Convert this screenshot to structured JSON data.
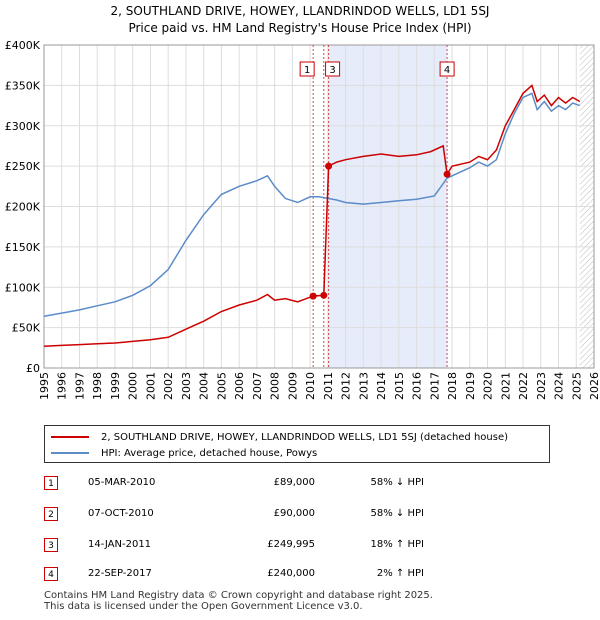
{
  "title_line1": "2, SOUTHLAND DRIVE, HOWEY, LLANDRINDOD WELLS, LD1 5SJ",
  "title_line2": "Price paid vs. HM Land Registry's House Price Index (HPI)",
  "legend": {
    "red_label": "2, SOUTHLAND DRIVE, HOWEY, LLANDRINDOD WELLS, LD1 5SJ (detached house)",
    "blue_label": "HPI: Average price, detached house, Powys"
  },
  "colors": {
    "red": "#cc0000",
    "blue": "#5b8cc8",
    "shade": "#e6ecfa",
    "grid": "#dddddd"
  },
  "transactions": [
    {
      "num": "1",
      "date": "05-MAR-2010",
      "price": "£89,000",
      "hpi": "58% ↓ HPI"
    },
    {
      "num": "2",
      "date": "07-OCT-2010",
      "price": "£90,000",
      "hpi": "58% ↓ HPI"
    },
    {
      "num": "3",
      "date": "14-JAN-2011",
      "price": "£249,995",
      "hpi": "18% ↑ HPI"
    },
    {
      "num": "4",
      "date": "22-SEP-2017",
      "price": "£240,000",
      "hpi": "2% ↑ HPI"
    }
  ],
  "footer_line1": "Contains HM Land Registry data © Crown copyright and database right 2025.",
  "footer_line2": "This data is licensed under the Open Government Licence v3.0.",
  "chart_data": {
    "type": "line",
    "xlabel": "",
    "ylabel": "",
    "xlim": [
      1995,
      2026
    ],
    "ylim": [
      0,
      400000
    ],
    "x_ticks": [
      "1995",
      "1996",
      "1997",
      "1998",
      "1999",
      "2000",
      "2001",
      "2002",
      "2003",
      "2004",
      "2005",
      "2006",
      "2007",
      "2008",
      "2009",
      "2010",
      "2011",
      "2012",
      "2013",
      "2014",
      "2015",
      "2016",
      "2017",
      "2018",
      "2019",
      "2020",
      "2021",
      "2022",
      "2023",
      "2024",
      "2025",
      "2026"
    ],
    "y_ticks": [
      {
        "value": 0,
        "label": "£0"
      },
      {
        "value": 50000,
        "label": "£50K"
      },
      {
        "value": 100000,
        "label": "£100K"
      },
      {
        "value": 150000,
        "label": "£150K"
      },
      {
        "value": 200000,
        "label": "£200K"
      },
      {
        "value": 250000,
        "label": "£250K"
      },
      {
        "value": 300000,
        "label": "£300K"
      },
      {
        "value": 350000,
        "label": "£350K"
      },
      {
        "value": 400000,
        "label": "£400K"
      }
    ],
    "shaded_range": [
      2011.04,
      2017.72
    ],
    "hatched_from": 2025.2,
    "sale_markers": [
      {
        "label": "1",
        "x": 2010.17,
        "y": 89000
      },
      {
        "label": "2",
        "x": 2010.77,
        "y": 90000
      },
      {
        "label": "3",
        "x": 2011.04,
        "y": 249995
      },
      {
        "label": "4",
        "x": 2017.72,
        "y": 240000
      }
    ],
    "series": [
      {
        "name": "2, SOUTHLAND DRIVE, HOWEY, LLANDRINDOD WELLS, LD1 5SJ (detached house)",
        "color": "#cc0000",
        "x": [
          1995.0,
          1996.0,
          1997.0,
          1998.0,
          1999.0,
          2000.0,
          2001.0,
          2002.0,
          2003.0,
          2004.0,
          2005.0,
          2006.0,
          2007.0,
          2007.6,
          2008.0,
          2008.6,
          2009.3,
          2010.17,
          2010.77,
          2011.04,
          2011.5,
          2012.0,
          2013.0,
          2014.0,
          2015.0,
          2016.0,
          2016.8,
          2017.5,
          2017.72,
          2018.0,
          2019.0,
          2019.5,
          2020.0,
          2020.5,
          2021.0,
          2021.5,
          2022.0,
          2022.5,
          2022.8,
          2023.2,
          2023.6,
          2024.0,
          2024.4,
          2024.8,
          2025.2
        ],
        "y": [
          27000,
          28000,
          29000,
          30000,
          31000,
          33000,
          35000,
          38000,
          48000,
          58000,
          70000,
          78000,
          84000,
          91000,
          84000,
          86000,
          82000,
          89000,
          90000,
          249995,
          255000,
          258000,
          262000,
          265000,
          262000,
          264000,
          268000,
          275000,
          240000,
          250000,
          255000,
          262000,
          258000,
          270000,
          300000,
          320000,
          340000,
          350000,
          330000,
          338000,
          325000,
          335000,
          328000,
          335000,
          330000
        ]
      },
      {
        "name": "HPI: Average price, detached house, Powys",
        "color": "#5b8cc8",
        "x": [
          1995.0,
          1996.0,
          1997.0,
          1998.0,
          1999.0,
          2000.0,
          2001.0,
          2002.0,
          2003.0,
          2004.0,
          2005.0,
          2006.0,
          2007.0,
          2007.6,
          2008.0,
          2008.6,
          2009.3,
          2010.0,
          2010.5,
          2011.0,
          2011.5,
          2012.0,
          2013.0,
          2014.0,
          2015.0,
          2016.0,
          2017.0,
          2017.72,
          2018.0,
          2019.0,
          2019.5,
          2020.0,
          2020.5,
          2021.0,
          2021.5,
          2022.0,
          2022.5,
          2022.8,
          2023.2,
          2023.6,
          2024.0,
          2024.4,
          2024.8,
          2025.2
        ],
        "y": [
          64000,
          68000,
          72000,
          77000,
          82000,
          90000,
          102000,
          122000,
          158000,
          190000,
          215000,
          225000,
          232000,
          238000,
          225000,
          210000,
          205000,
          212000,
          212000,
          210000,
          208000,
          205000,
          203000,
          205000,
          207000,
          209000,
          213000,
          235000,
          238000,
          248000,
          255000,
          250000,
          258000,
          290000,
          315000,
          335000,
          340000,
          320000,
          330000,
          318000,
          325000,
          320000,
          328000,
          325000
        ]
      }
    ]
  }
}
